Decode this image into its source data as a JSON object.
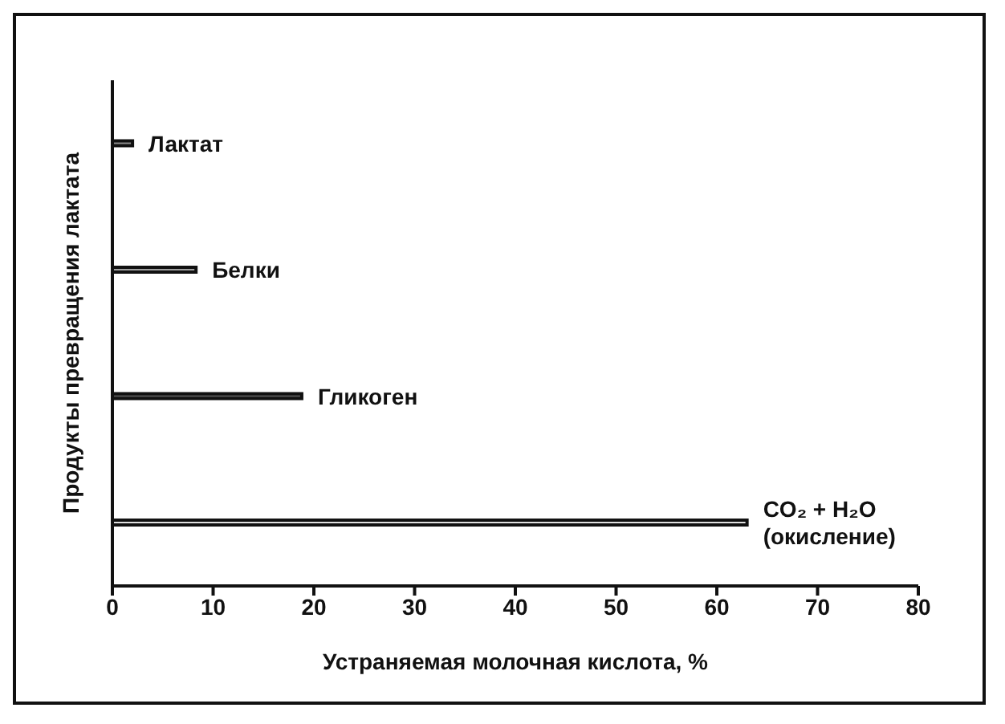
{
  "chart_data": {
    "type": "bar",
    "orientation": "horizontal",
    "categories": [
      "Лактат",
      "Белки",
      "Гликоген",
      "CO₂ + H₂O (окисление)"
    ],
    "values": [
      2,
      8.3,
      18.8,
      63
    ],
    "colors": [
      "#8a8a8a",
      "#a0a0a0",
      "#555555",
      "#e0e0e0"
    ],
    "xlabel": "Устраняемая молочная кислота, %",
    "ylabel": "Продукты превращения лактата",
    "xlim": [
      0,
      80
    ],
    "xticks": [
      0,
      10,
      20,
      30,
      40,
      50,
      60,
      70,
      80
    ],
    "tick_labels": "x",
    "grid": false,
    "legend": false
  }
}
